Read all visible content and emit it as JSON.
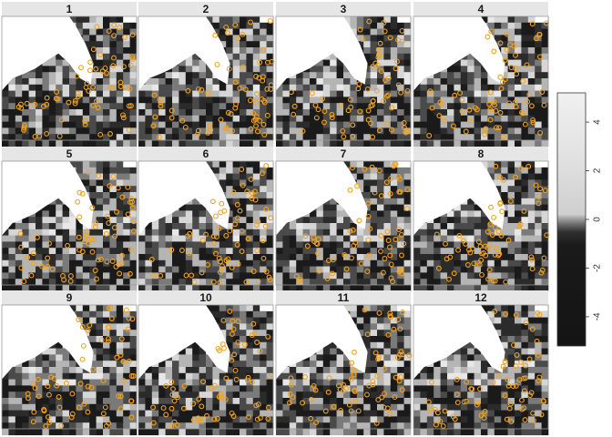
{
  "chart_data": {
    "type": "heatmap",
    "title": "",
    "panels": [
      "1",
      "2",
      "3",
      "4",
      "5",
      "6",
      "7",
      "8",
      "9",
      "10",
      "11",
      "12"
    ],
    "layout": {
      "rows": 3,
      "cols": 4
    },
    "colorbar": {
      "ticks": [
        4,
        2,
        0,
        -2,
        -4
      ],
      "tick_labels": [
        "4",
        "2",
        "0",
        "-2",
        "-4"
      ],
      "range": [
        -5.2,
        5.2
      ],
      "palette": "grayscale (black = low, light gray = high)"
    },
    "point_overlay": {
      "marker": "open circle",
      "color": "#f2a31b"
    },
    "colors": {
      "strip_bg": "#e6e6e6",
      "ocean_dark": "#1a1a1a",
      "land": "#ffffff",
      "points": "#f2a31b"
    }
  }
}
